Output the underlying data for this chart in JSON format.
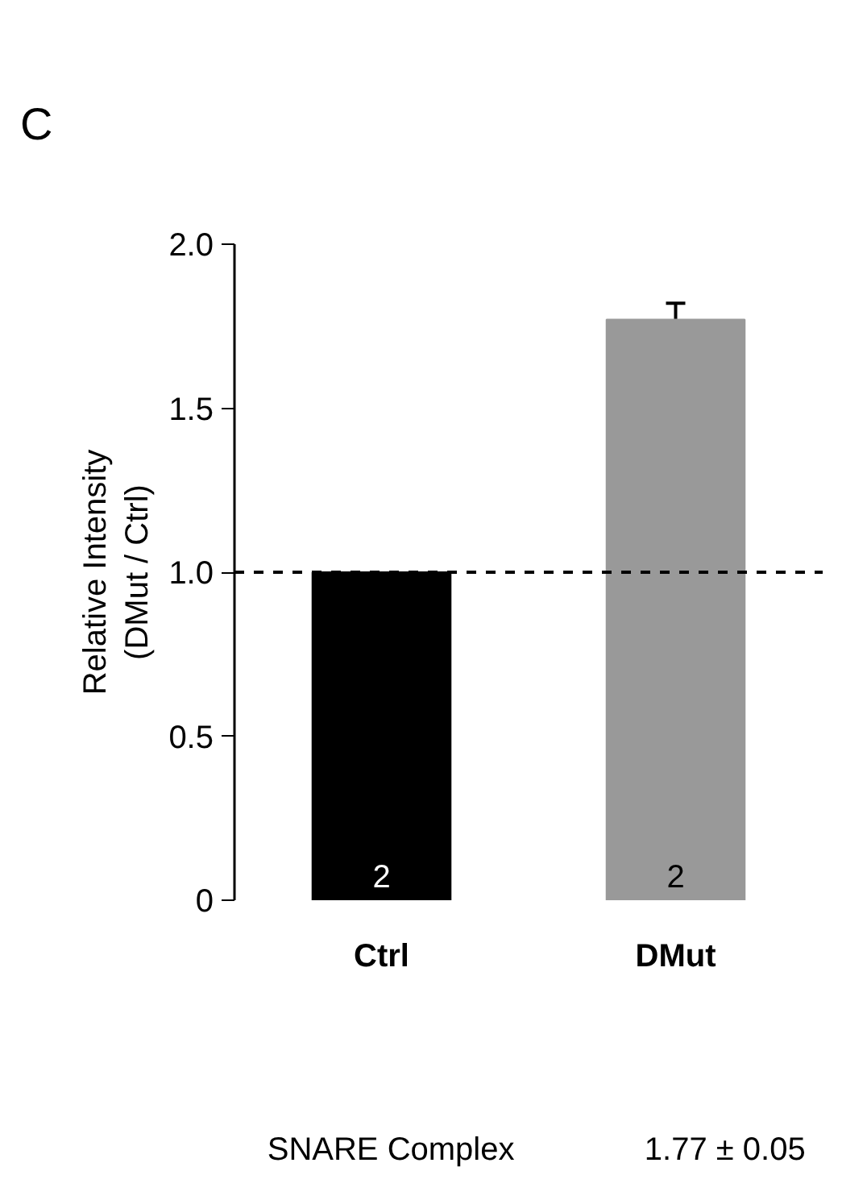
{
  "chart_data": {
    "type": "bar",
    "title": "C",
    "ylabel": "Relative Intensity\n(DMut / Ctrl)",
    "categories": [
      "Ctrl",
      "DMut"
    ],
    "values": [
      1.0,
      1.77
    ],
    "colors": [
      "#000000",
      "#999999"
    ],
    "errors": [
      null,
      0.05
    ],
    "ylim": [
      0,
      2.0
    ],
    "yticks": [
      {
        "value": 0,
        "label": "0"
      },
      {
        "value": 0.5,
        "label": "0.5"
      },
      {
        "value": 1.0,
        "label": "1.0"
      },
      {
        "value": 1.5,
        "label": "1.5"
      },
      {
        "value": 2.0,
        "label": "2.0"
      }
    ],
    "ref_lines": [
      {
        "axis": "y",
        "value": 1.0,
        "label": null,
        "line_style": "dashed",
        "color": "#000000"
      }
    ],
    "annotations": [
      "2",
      "2",
      "SNARE Complex",
      "1.77 ± 0.05"
    ],
    "grid": false
  }
}
